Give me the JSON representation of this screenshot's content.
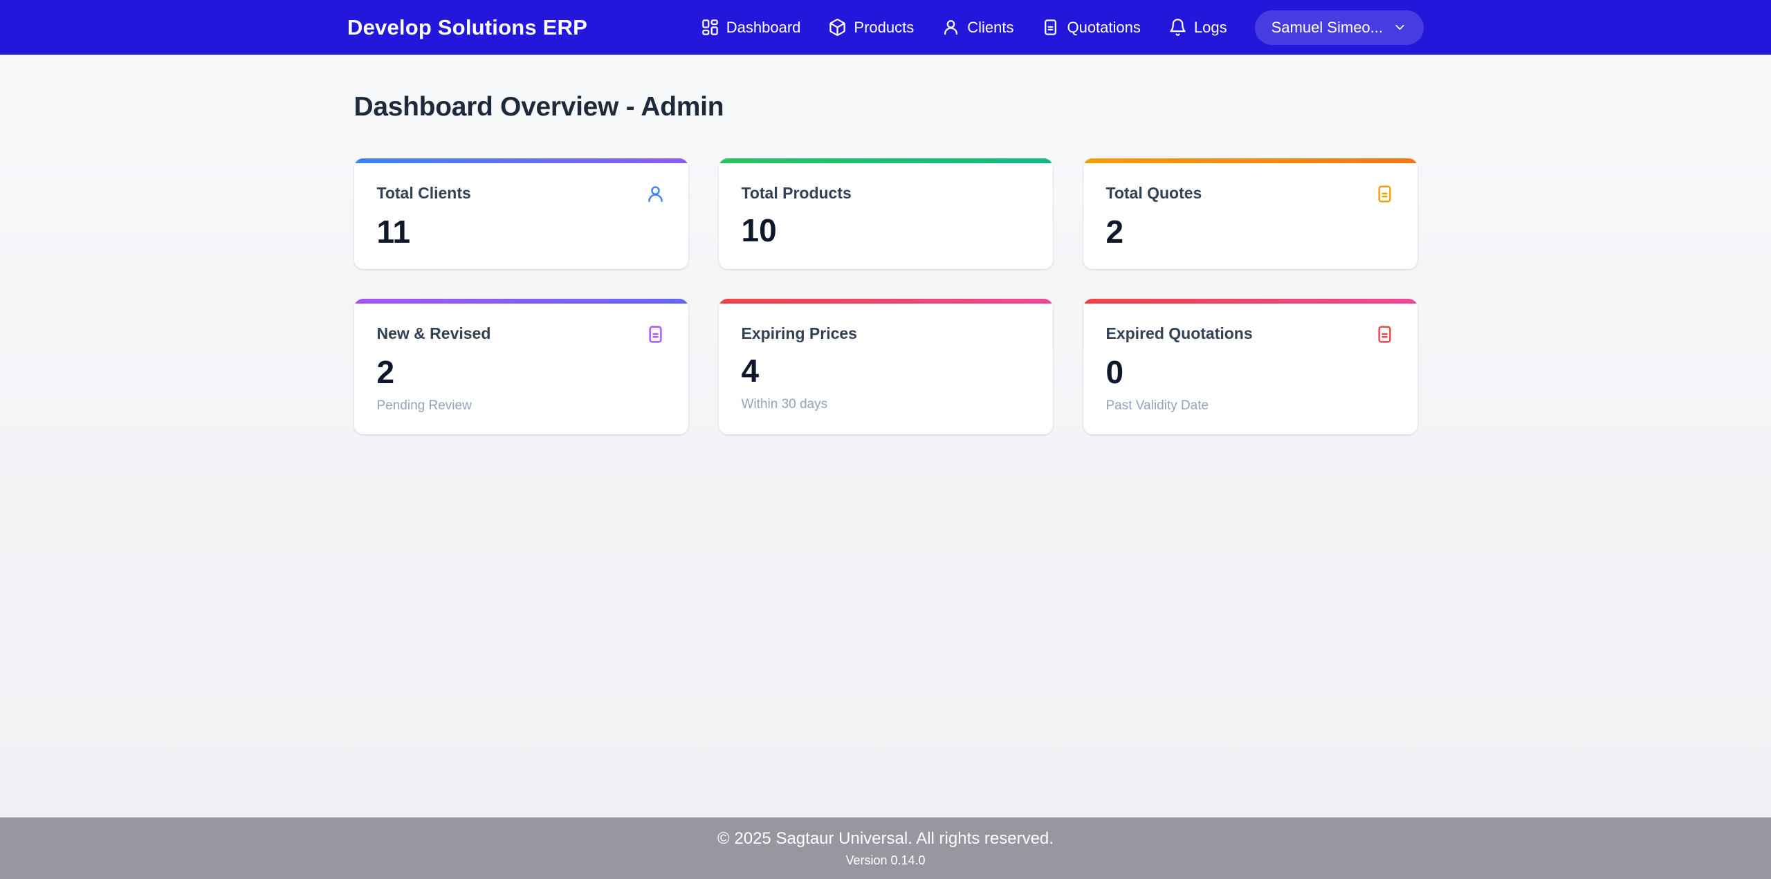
{
  "navbar": {
    "brand": "Develop Solutions ERP",
    "items": [
      {
        "label": "Dashboard",
        "icon": "dashboard-grid-icon"
      },
      {
        "label": "Products",
        "icon": "package-icon"
      },
      {
        "label": "Clients",
        "icon": "user-icon"
      },
      {
        "label": "Quotations",
        "icon": "quote-document-icon"
      },
      {
        "label": "Logs",
        "icon": "bell-icon"
      }
    ],
    "user_menu": {
      "label": "Samuel Simeo...",
      "chevron_icon": "chevron-down-icon"
    },
    "colors": {
      "background": "#2417dc"
    }
  },
  "page": {
    "heading": "Dashboard Overview - Admin"
  },
  "stats_cards": [
    {
      "title": "Total Clients",
      "value": "11",
      "subtitle": "",
      "icon": "user-icon",
      "icon_color": "#3b82f6",
      "accent_from": "#3b82f6",
      "accent_to": "#8b5cf6"
    },
    {
      "title": "Total Products",
      "value": "10",
      "subtitle": "",
      "icon": "",
      "icon_color": "",
      "accent_from": "#22c55e",
      "accent_to": "#10b981"
    },
    {
      "title": "Total Quotes",
      "value": "2",
      "subtitle": "",
      "icon": "quote-document-icon",
      "icon_color": "#f59e0b",
      "accent_from": "#f59e0b",
      "accent_to": "#f97316"
    },
    {
      "title": "New & Revised",
      "value": "2",
      "subtitle": "Pending Review",
      "icon": "quote-document-icon",
      "icon_color": "#a855f7",
      "accent_from": "#a855f7",
      "accent_to": "#6366f1"
    },
    {
      "title": "Expiring Prices",
      "value": "4",
      "subtitle": "Within 30 days",
      "icon": "",
      "icon_color": "",
      "accent_from": "#ef4444",
      "accent_to": "#ec4899"
    },
    {
      "title": "Expired Quotations",
      "value": "0",
      "subtitle": "Past Validity Date",
      "icon": "quote-document-icon",
      "icon_color": "#ef4444",
      "accent_from": "#ef4444",
      "accent_to": "#ec4899"
    }
  ],
  "footer": {
    "copyright": "© 2025 Sagtaur Universal. All rights reserved.",
    "version": "Version 0.14.0"
  }
}
